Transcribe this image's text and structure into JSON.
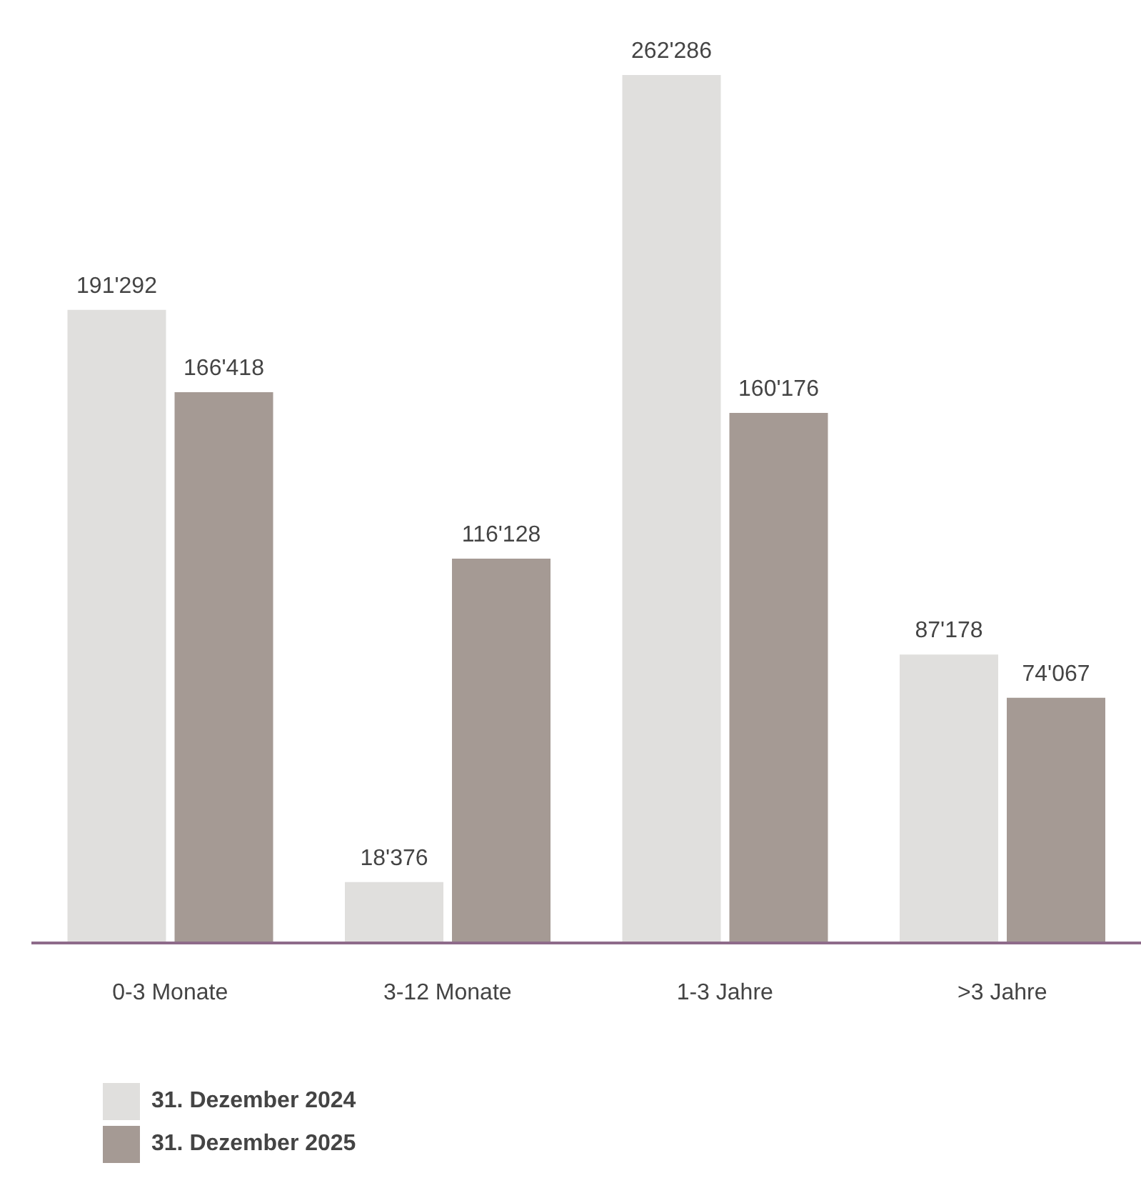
{
  "chart_data": {
    "type": "bar",
    "categories": [
      "0-3 Monate",
      "3-12 Monate",
      "1-3 Jahre",
      ">3 Jahre"
    ],
    "series": [
      {
        "name": "31. Dezember 2024",
        "color": "#e0dfdd",
        "values": [
          191292,
          18376,
          262286,
          87178
        ],
        "value_labels": [
          "191'292",
          "18'376",
          "262'286",
          "87'178"
        ]
      },
      {
        "name": "31. Dezember 2025",
        "color": "#a59a94",
        "values": [
          166418,
          116128,
          160176,
          74067
        ],
        "value_labels": [
          "166'418",
          "116'128",
          "160'176",
          "74'067"
        ]
      }
    ],
    "legend": "bottom left",
    "grid": false
  }
}
